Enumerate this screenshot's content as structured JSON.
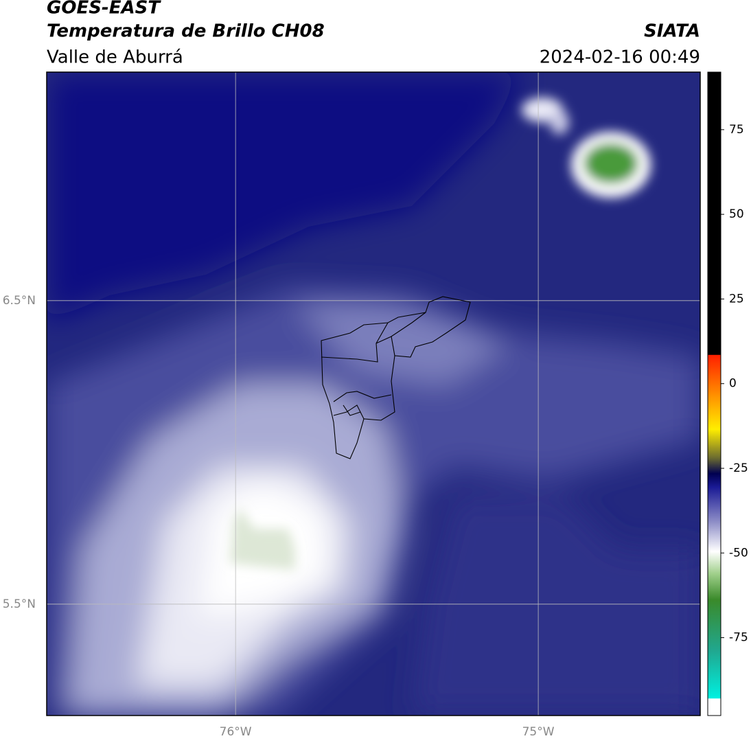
{
  "header": {
    "title": "GOES-EAST",
    "subtitle": "Temperatura de Brillo CH08",
    "region": "Valle de Aburrá",
    "source": "SIATA",
    "datetime": "2024-02-16 00:49"
  },
  "map": {
    "xlim": [
      -76.624,
      -74.465
    ],
    "ylim": [
      5.133,
      7.253
    ],
    "xticks": [
      {
        "value": -76,
        "label": "76°W"
      },
      {
        "value": -75,
        "label": "75°W"
      }
    ],
    "yticks": [
      {
        "value": 6.5,
        "label": "6.5°N"
      },
      {
        "value": 5.5,
        "label": "5.5°N"
      }
    ]
  },
  "colorbar": {
    "lim": [
      -98,
      92
    ],
    "ticks": [
      75,
      50,
      25,
      0,
      -25,
      -50,
      -75
    ]
  }
}
